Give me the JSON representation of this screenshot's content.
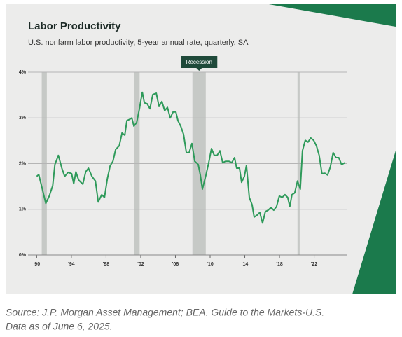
{
  "chart_data": {
    "type": "line",
    "title": "Labor Productivity",
    "subtitle": "U.S. nonfarm labor productivity, 5-year annual rate, quarterly, SA",
    "annotation": "Recession",
    "recessions": [
      [
        1990.58,
        1991.17
      ],
      [
        2001.21,
        2001.87
      ],
      [
        2007.96,
        2009.5
      ],
      [
        2020.08,
        2020.33
      ]
    ],
    "x": [
      1990.0,
      1990.24,
      1990.65,
      1991.05,
      1991.45,
      1991.85,
      1992.1,
      1992.5,
      1992.9,
      1993.23,
      1993.63,
      1994.03,
      1994.27,
      1994.52,
      1994.84,
      1995.32,
      1995.65,
      1995.97,
      1996.37,
      1996.77,
      1997.1,
      1997.5,
      1997.82,
      1998.15,
      1998.47,
      1998.79,
      1999.11,
      1999.52,
      1999.84,
      2000.16,
      2000.4,
      2000.73,
      2000.97,
      2001.21,
      2001.53,
      2001.85,
      2002.18,
      2002.42,
      2002.74,
      2003.06,
      2003.39,
      2003.79,
      2004.11,
      2004.44,
      2004.76,
      2005.08,
      2005.4,
      2005.73,
      2006.05,
      2006.29,
      2006.61,
      2006.94,
      2007.26,
      2007.58,
      2007.9,
      2008.23,
      2008.63,
      2008.87,
      2009.11,
      2009.52,
      2009.84,
      2010.16,
      2010.48,
      2010.81,
      2011.13,
      2011.45,
      2011.77,
      2012.18,
      2012.5,
      2012.82,
      2013.06,
      2013.39,
      2013.63,
      2013.95,
      2014.19,
      2014.52,
      2014.84,
      2015.08,
      2015.4,
      2015.73,
      2016.05,
      2016.37,
      2016.69,
      2017.02,
      2017.34,
      2017.66,
      2017.98,
      2018.31,
      2018.63,
      2018.95,
      2019.19,
      2019.44,
      2019.76,
      2020.08,
      2020.4,
      2020.65,
      2020.97,
      2021.29,
      2021.61,
      2021.94,
      2022.26,
      2022.58,
      2022.9,
      2023.23,
      2023.55,
      2023.87,
      2024.19,
      2024.52,
      2024.84,
      2025.16,
      2025.56
    ],
    "values": [
      1.72,
      1.76,
      1.44,
      1.13,
      1.29,
      1.52,
      1.98,
      2.18,
      1.9,
      1.72,
      1.81,
      1.78,
      1.56,
      1.82,
      1.64,
      1.55,
      1.82,
      1.9,
      1.72,
      1.62,
      1.16,
      1.32,
      1.26,
      1.67,
      1.95,
      2.05,
      2.31,
      2.39,
      2.67,
      2.62,
      2.94,
      2.97,
      3.0,
      2.82,
      2.9,
      3.2,
      3.56,
      3.33,
      3.31,
      3.2,
      3.51,
      3.54,
      3.25,
      3.36,
      3.16,
      3.23,
      3.0,
      3.13,
      3.13,
      2.94,
      2.82,
      2.64,
      2.24,
      2.24,
      2.44,
      2.05,
      1.98,
      1.75,
      1.44,
      1.75,
      2.02,
      2.33,
      2.18,
      2.18,
      2.28,
      2.02,
      2.05,
      2.05,
      2.02,
      2.13,
      1.9,
      1.9,
      1.59,
      1.72,
      1.96,
      1.26,
      1.1,
      0.83,
      0.87,
      0.93,
      0.7,
      0.95,
      0.98,
      1.04,
      0.98,
      1.06,
      1.29,
      1.26,
      1.32,
      1.26,
      1.06,
      1.32,
      1.36,
      1.62,
      1.44,
      2.28,
      2.51,
      2.47,
      2.56,
      2.51,
      2.39,
      2.18,
      1.78,
      1.79,
      1.75,
      1.93,
      2.24,
      2.13,
      2.13,
      1.98,
      2.02
    ],
    "color": "#2e9a5a",
    "xlim": [
      1989,
      2025.75
    ],
    "xticks": [
      {
        "value": 1990,
        "label": "'90"
      },
      {
        "value": 1994,
        "label": "'94"
      },
      {
        "value": 1998,
        "label": "'98"
      },
      {
        "value": 2002,
        "label": "'02"
      },
      {
        "value": 2006,
        "label": "'06"
      },
      {
        "value": 2010,
        "label": "'10"
      },
      {
        "value": 2014,
        "label": "'14"
      },
      {
        "value": 2018,
        "label": "'18"
      },
      {
        "value": 2022,
        "label": "'22"
      }
    ],
    "ylim": [
      0,
      4
    ],
    "yticks": [
      {
        "value": 0,
        "label": "0%"
      },
      {
        "value": 1,
        "label": "1%"
      },
      {
        "value": 2,
        "label": "2%"
      },
      {
        "value": 3,
        "label": "3%"
      },
      {
        "value": 4,
        "label": "4%"
      }
    ],
    "grid": true,
    "source": [
      "Source: J.P. Morgan Asset Management; BEA. Guide to the Markets-U.S.",
      "Data as of June 6, 2025."
    ]
  }
}
